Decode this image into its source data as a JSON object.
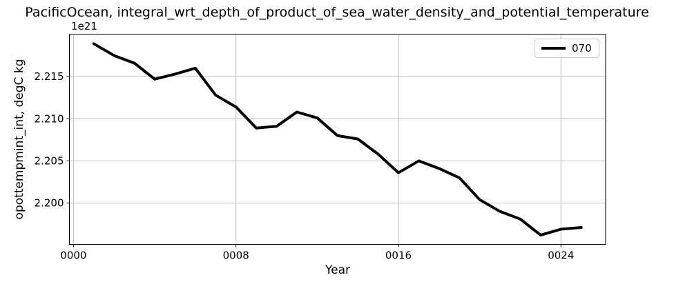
{
  "chart_data": {
    "type": "line",
    "title": "PacificOcean, integral_wrt_depth_of_product_of_sea_water_density_and_potential_temperature",
    "xlabel": "Year",
    "ylabel": "opottempmint_int, degC kg",
    "offset_text": "1e21",
    "grid": true,
    "legend": {
      "position": "upper right",
      "entries": [
        {
          "label": "070",
          "color": "#000000"
        }
      ]
    },
    "xlim": [
      -0.2,
      26.2
    ],
    "ylim": [
      2.1951,
      2.22
    ],
    "xticks": {
      "values": [
        0,
        8,
        16,
        24
      ],
      "labels": [
        "0000",
        "0008",
        "0016",
        "0024"
      ]
    },
    "yticks": {
      "values": [
        2.2,
        2.205,
        2.21,
        2.215
      ],
      "labels": [
        "2.200",
        "2.205",
        "2.210",
        "2.215"
      ]
    },
    "series": [
      {
        "name": "070",
        "color": "#000000",
        "linewidth": 4,
        "x": [
          1,
          2,
          3,
          4,
          5,
          6,
          7,
          8,
          9,
          10,
          11,
          12,
          13,
          14,
          15,
          16,
          17,
          18,
          19,
          20,
          21,
          22,
          23,
          24,
          25
        ],
        "y": [
          2.2189,
          2.2175,
          2.2166,
          2.2147,
          2.2153,
          2.216,
          2.2128,
          2.2114,
          2.2089,
          2.2091,
          2.2108,
          2.2101,
          2.208,
          2.2076,
          2.2058,
          2.2036,
          2.205,
          2.2041,
          2.203,
          2.2004,
          2.199,
          2.1981,
          2.1962,
          2.1969,
          2.1971
        ]
      }
    ],
    "colors": {
      "axis": "#000000",
      "grid": "#bdbdbd",
      "line": "#000000",
      "legend_border": "#cccccc",
      "background": "#ffffff"
    }
  }
}
